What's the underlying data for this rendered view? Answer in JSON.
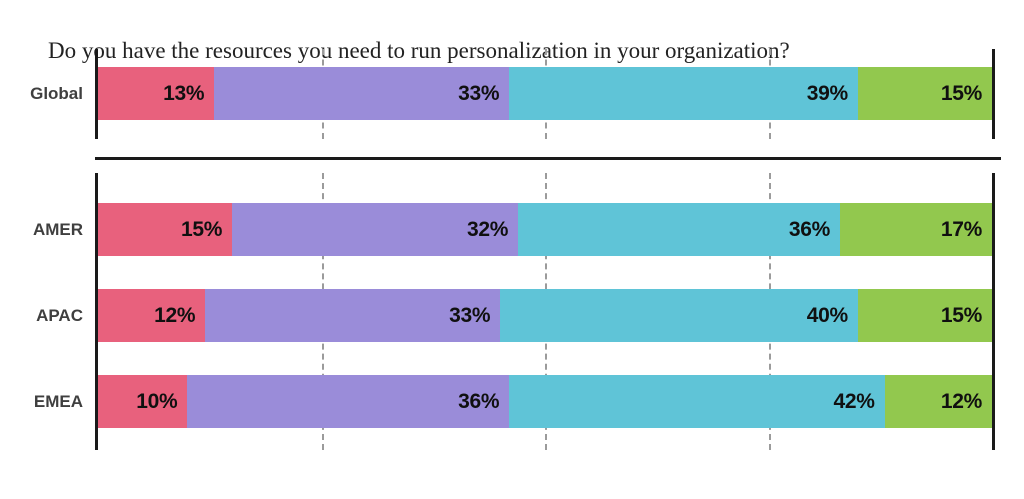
{
  "title": "Do you have the resources you need to run personalization in your organization?",
  "colors": {
    "axis": "#1a1a1a",
    "gridline": "#9b9b9b",
    "row_label_text": "#3f3f3f",
    "value_text": "#101010",
    "background": "#ffffff",
    "segment_pink": "#e8617d",
    "segment_purple": "#9a8cd9",
    "segment_teal": "#5fc4d7",
    "segment_green": "#92c84e"
  },
  "chart_data": {
    "type": "bar",
    "subtype": "horizontal-stacked",
    "title": "Do you have the resources you need to run personalization in your organization?",
    "unit": "%",
    "xlim": [
      0,
      100
    ],
    "gridlines_pct": [
      25,
      50,
      75
    ],
    "grid": "dashed-vertical",
    "legend": "none-visible",
    "segment_ids": [
      "pink",
      "purple",
      "teal",
      "green"
    ],
    "segment_colors": [
      "#e8617d",
      "#9a8cd9",
      "#5fc4d7",
      "#92c84e"
    ],
    "value_label_position": "inside-right",
    "groups": [
      {
        "name": "global",
        "rows": [
          {
            "label": "Global",
            "values": [
              13,
              33,
              39,
              15
            ]
          }
        ]
      },
      {
        "name": "regional",
        "rows": [
          {
            "label": "AMER",
            "values": [
              15,
              32,
              36,
              17
            ]
          },
          {
            "label": "APAC",
            "values": [
              12,
              33,
              40,
              15
            ]
          },
          {
            "label": "EMEA",
            "values": [
              10,
              36,
              42,
              12
            ]
          }
        ]
      }
    ]
  }
}
